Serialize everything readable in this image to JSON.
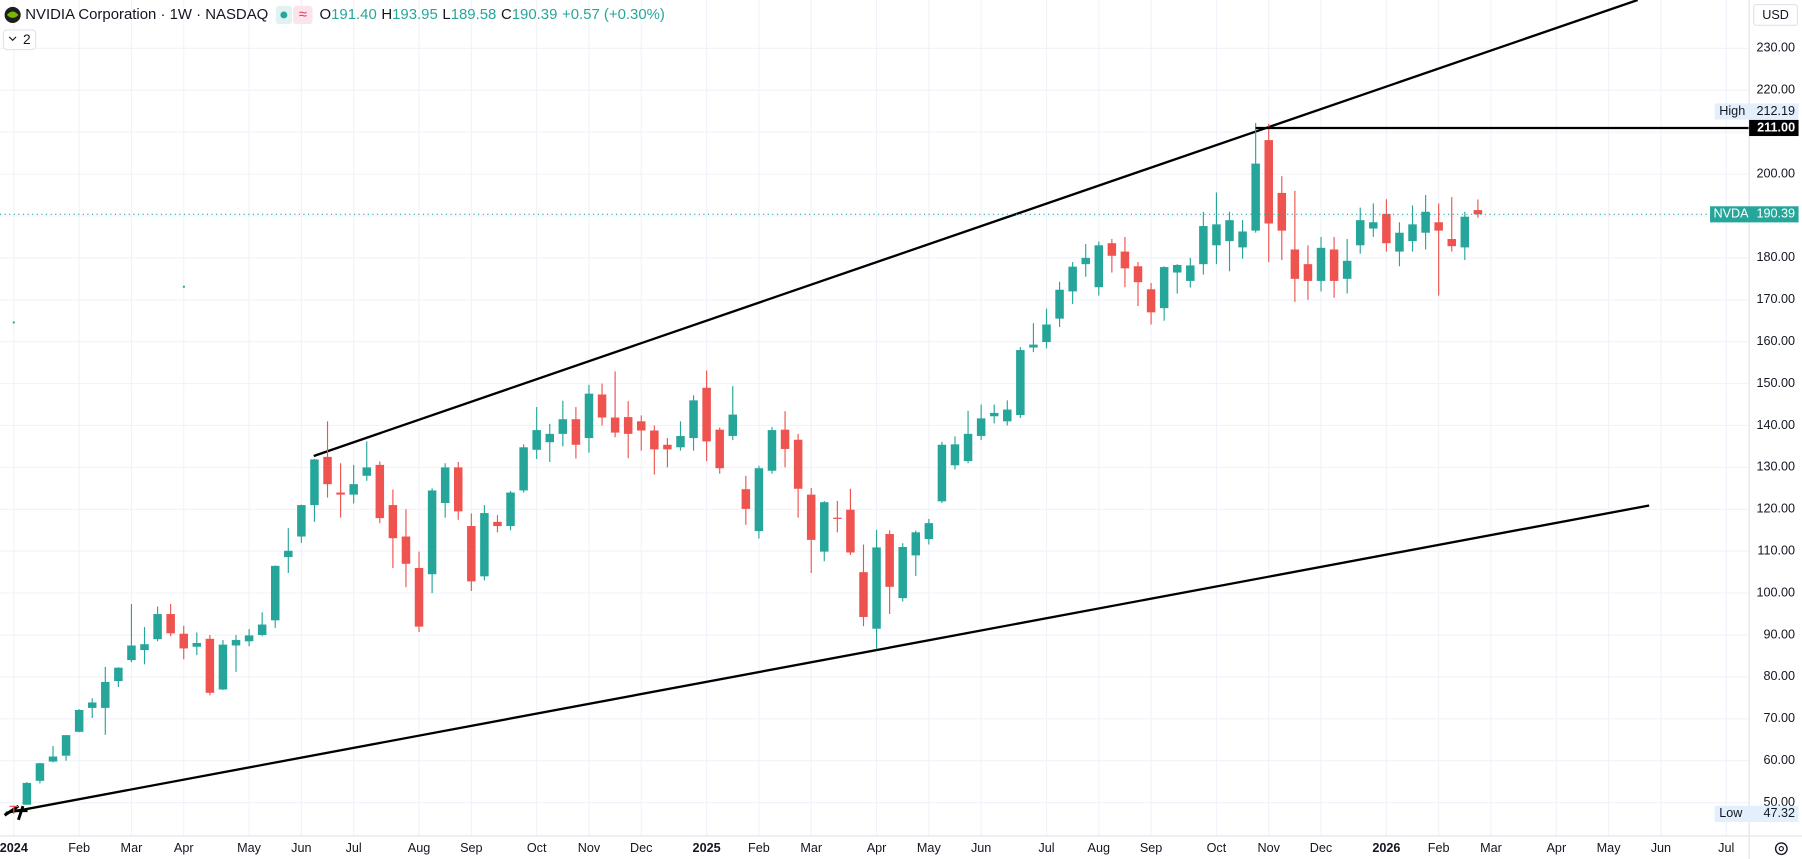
{
  "header": {
    "title": "NVIDIA Corporation · 1W · NASDAQ",
    "badge": "≈",
    "indicator_count": "2",
    "ohlc": [
      {
        "label": "O",
        "value": "191.40"
      },
      {
        "label": "H",
        "value": "193.95"
      },
      {
        "label": "L",
        "value": "189.58"
      },
      {
        "label": "C",
        "value": "190.39"
      }
    ],
    "change": "+0.57 (+0.30%)"
  },
  "chart_data": {
    "type": "candlestick",
    "symbol": "NVDA",
    "currency": "USD",
    "high_label": "High",
    "low_label": "Low",
    "colors": {
      "up": "#26a69a",
      "down": "#ef5350"
    },
    "grid": true,
    "ylim": [
      42.04,
      241.54
    ],
    "xlim": [
      -1.055,
      132.75
    ],
    "yticks": [
      {
        "value": 50,
        "label": "50.00"
      },
      {
        "value": 60,
        "label": "60.00"
      },
      {
        "value": 70,
        "label": "70.00"
      },
      {
        "value": 80,
        "label": "80.00"
      },
      {
        "value": 90,
        "label": "90.00"
      },
      {
        "value": 100,
        "label": "100.00"
      },
      {
        "value": 110,
        "label": "110.00"
      },
      {
        "value": 120,
        "label": "120.00"
      },
      {
        "value": 130,
        "label": "130.00"
      },
      {
        "value": 140,
        "label": "140.00"
      },
      {
        "value": 150,
        "label": "150.00"
      },
      {
        "value": 160,
        "label": "160.00"
      },
      {
        "value": 170,
        "label": "170.00"
      },
      {
        "value": 180,
        "label": "180.00"
      },
      {
        "value": 190,
        "label": "190.00"
      },
      {
        "value": 200,
        "label": "200.00"
      },
      {
        "value": 210,
        "label": "210.00"
      },
      {
        "value": 220,
        "label": "220.00"
      },
      {
        "value": 230,
        "label": "230.00"
      }
    ],
    "xticks": [
      {
        "value": 0,
        "label": "2024"
      },
      {
        "value": 5,
        "label": "Feb"
      },
      {
        "value": 9,
        "label": "Mar"
      },
      {
        "value": 13,
        "label": "Apr"
      },
      {
        "value": 18,
        "label": "May"
      },
      {
        "value": 22,
        "label": "Jun"
      },
      {
        "value": 26,
        "label": "Jul"
      },
      {
        "value": 31,
        "label": "Aug"
      },
      {
        "value": 35,
        "label": "Sep"
      },
      {
        "value": 40,
        "label": "Oct"
      },
      {
        "value": 44,
        "label": "Nov"
      },
      {
        "value": 48,
        "label": "Dec"
      },
      {
        "value": 53,
        "label": "2025"
      },
      {
        "value": 57,
        "label": "Feb"
      },
      {
        "value": 61,
        "label": "Mar"
      },
      {
        "value": 66,
        "label": "Apr"
      },
      {
        "value": 70,
        "label": "May"
      },
      {
        "value": 74,
        "label": "Jun"
      },
      {
        "value": 79,
        "label": "Jul"
      },
      {
        "value": 83,
        "label": "Aug"
      },
      {
        "value": 87,
        "label": "Sep"
      },
      {
        "value": 92,
        "label": "Oct"
      },
      {
        "value": 96,
        "label": "Nov"
      },
      {
        "value": 100,
        "label": "Dec"
      },
      {
        "value": 105,
        "label": "2026"
      },
      {
        "value": 109,
        "label": "Feb"
      },
      {
        "value": 113,
        "label": "Mar"
      },
      {
        "value": 118,
        "label": "Apr"
      },
      {
        "value": 122,
        "label": "May"
      },
      {
        "value": 126,
        "label": "Jun"
      },
      {
        "value": 131,
        "label": "Jul"
      }
    ],
    "hline": {
      "value": 211,
      "label": "211.00"
    },
    "candles": [
      {
        "open": 49.24,
        "high": 49.3,
        "low": 47.32,
        "close": 49.1
      },
      {
        "open": 49.5,
        "high": 54.9,
        "low": 49.5,
        "close": 54.7
      },
      {
        "open": 55.2,
        "high": 59.5,
        "low": 54.6,
        "close": 59.4
      },
      {
        "open": 59.8,
        "high": 63.5,
        "low": 59.6,
        "close": 61.0
      },
      {
        "open": 61.2,
        "high": 66.1,
        "low": 60.0,
        "close": 66.1
      },
      {
        "open": 66.9,
        "high": 72.3,
        "low": 66.8,
        "close": 72.1
      },
      {
        "open": 72.6,
        "high": 74.9,
        "low": 70.2,
        "close": 73.9
      },
      {
        "open": 72.6,
        "high": 82.4,
        "low": 66.2,
        "close": 78.8
      },
      {
        "open": 79.0,
        "high": 82.3,
        "low": 77.6,
        "close": 82.2
      },
      {
        "open": 84.0,
        "high": 97.4,
        "low": 83.5,
        "close": 87.5
      },
      {
        "open": 86.4,
        "high": 91.9,
        "low": 83.0,
        "close": 87.8
      },
      {
        "open": 89.0,
        "high": 96.8,
        "low": 88.5,
        "close": 95.0
      },
      {
        "open": 95.0,
        "high": 97.4,
        "low": 89.7,
        "close": 90.4
      },
      {
        "open": 90.3,
        "high": 92.2,
        "low": 84.2,
        "close": 86.8
      },
      {
        "open": 87.2,
        "high": 90.6,
        "low": 85.2,
        "close": 88.1
      },
      {
        "open": 89.1,
        "high": 90.0,
        "low": 75.6,
        "close": 76.2
      },
      {
        "open": 77.0,
        "high": 88.8,
        "low": 76.9,
        "close": 87.7
      },
      {
        "open": 87.5,
        "high": 90.0,
        "low": 81.2,
        "close": 88.8
      },
      {
        "open": 88.5,
        "high": 91.4,
        "low": 87.3,
        "close": 89.9
      },
      {
        "open": 90.0,
        "high": 95.4,
        "low": 89.7,
        "close": 92.5
      },
      {
        "open": 93.5,
        "high": 106.6,
        "low": 91.7,
        "close": 106.5
      },
      {
        "open": 108.6,
        "high": 115.5,
        "low": 104.8,
        "close": 110.1
      },
      {
        "open": 113.5,
        "high": 121.1,
        "low": 112.0,
        "close": 121.0
      },
      {
        "open": 121.0,
        "high": 132.0,
        "low": 117.0,
        "close": 131.9
      },
      {
        "open": 132.5,
        "high": 141.0,
        "low": 122.8,
        "close": 126.0
      },
      {
        "open": 124.0,
        "high": 131.0,
        "low": 118.0,
        "close": 123.5
      },
      {
        "open": 123.5,
        "high": 130.6,
        "low": 121.4,
        "close": 126.0
      },
      {
        "open": 128.0,
        "high": 136.2,
        "low": 126.8,
        "close": 130.0
      },
      {
        "open": 130.6,
        "high": 131.4,
        "low": 116.7,
        "close": 117.9
      },
      {
        "open": 121.0,
        "high": 124.7,
        "low": 106.0,
        "close": 113.1
      },
      {
        "open": 113.5,
        "high": 120.0,
        "low": 101.4,
        "close": 107.0
      },
      {
        "open": 106.0,
        "high": 109.9,
        "low": 90.7,
        "close": 92.0
      },
      {
        "open": 104.5,
        "high": 125.0,
        "low": 100.0,
        "close": 124.5
      },
      {
        "open": 121.5,
        "high": 131.0,
        "low": 118.0,
        "close": 130.0
      },
      {
        "open": 130.0,
        "high": 131.3,
        "low": 117.5,
        "close": 119.5
      },
      {
        "open": 116.0,
        "high": 119.0,
        "low": 100.5,
        "close": 102.8
      },
      {
        "open": 104.0,
        "high": 121.0,
        "low": 103.0,
        "close": 119.1
      },
      {
        "open": 117.0,
        "high": 118.6,
        "low": 114.5,
        "close": 116.0
      },
      {
        "open": 116.0,
        "high": 124.4,
        "low": 115.0,
        "close": 124.0
      },
      {
        "open": 124.5,
        "high": 135.5,
        "low": 124.0,
        "close": 134.8
      },
      {
        "open": 134.2,
        "high": 144.4,
        "low": 132.0,
        "close": 138.9
      },
      {
        "open": 136.0,
        "high": 140.4,
        "low": 131.3,
        "close": 138.0
      },
      {
        "open": 138.0,
        "high": 145.9,
        "low": 135.0,
        "close": 141.5
      },
      {
        "open": 141.5,
        "high": 144.4,
        "low": 132.1,
        "close": 135.4
      },
      {
        "open": 137.0,
        "high": 149.7,
        "low": 133.5,
        "close": 147.6
      },
      {
        "open": 147.4,
        "high": 150.0,
        "low": 140.0,
        "close": 141.9
      },
      {
        "open": 141.9,
        "high": 152.9,
        "low": 137.2,
        "close": 138.3
      },
      {
        "open": 142.0,
        "high": 145.8,
        "low": 132.2,
        "close": 138.0
      },
      {
        "open": 141.0,
        "high": 142.4,
        "low": 134.0,
        "close": 138.8
      },
      {
        "open": 138.8,
        "high": 140.0,
        "low": 128.3,
        "close": 134.3
      },
      {
        "open": 135.4,
        "high": 137.0,
        "low": 130.0,
        "close": 134.3
      },
      {
        "open": 134.8,
        "high": 141.0,
        "low": 134.0,
        "close": 137.5
      },
      {
        "open": 137.0,
        "high": 147.2,
        "low": 134.0,
        "close": 146.0
      },
      {
        "open": 149.0,
        "high": 153.1,
        "low": 131.5,
        "close": 136.2
      },
      {
        "open": 139.0,
        "high": 139.5,
        "low": 128.5,
        "close": 129.8
      },
      {
        "open": 137.5,
        "high": 149.4,
        "low": 136.5,
        "close": 142.6
      },
      {
        "open": 124.8,
        "high": 128.0,
        "low": 116.3,
        "close": 120.1
      },
      {
        "open": 114.8,
        "high": 130.4,
        "low": 113.0,
        "close": 129.8
      },
      {
        "open": 129.2,
        "high": 139.6,
        "low": 128.5,
        "close": 138.9
      },
      {
        "open": 139.0,
        "high": 143.4,
        "low": 130.0,
        "close": 134.4
      },
      {
        "open": 136.6,
        "high": 138.0,
        "low": 118.0,
        "close": 124.9
      },
      {
        "open": 123.5,
        "high": 125.1,
        "low": 104.8,
        "close": 112.7
      },
      {
        "open": 109.9,
        "high": 122.0,
        "low": 107.6,
        "close": 121.7
      },
      {
        "open": 118.0,
        "high": 122.0,
        "low": 114.5,
        "close": 117.7
      },
      {
        "open": 119.9,
        "high": 124.9,
        "low": 109.1,
        "close": 109.7
      },
      {
        "open": 105.0,
        "high": 111.6,
        "low": 92.1,
        "close": 94.3
      },
      {
        "open": 91.5,
        "high": 115.1,
        "low": 86.6,
        "close": 110.9
      },
      {
        "open": 114.1,
        "high": 115.0,
        "low": 95.0,
        "close": 101.5
      },
      {
        "open": 98.8,
        "high": 111.9,
        "low": 98.0,
        "close": 111.0
      },
      {
        "open": 109.0,
        "high": 114.9,
        "low": 104.1,
        "close": 114.5
      },
      {
        "open": 112.9,
        "high": 117.7,
        "low": 111.6,
        "close": 116.7
      },
      {
        "open": 121.9,
        "high": 136.1,
        "low": 121.5,
        "close": 135.4
      },
      {
        "open": 130.5,
        "high": 137.4,
        "low": 129.5,
        "close": 135.5
      },
      {
        "open": 131.5,
        "high": 143.5,
        "low": 131.0,
        "close": 138.0
      },
      {
        "open": 137.5,
        "high": 145.0,
        "low": 136.5,
        "close": 141.7
      },
      {
        "open": 142.2,
        "high": 145.0,
        "low": 140.5,
        "close": 143.0
      },
      {
        "open": 141.0,
        "high": 146.0,
        "low": 140.0,
        "close": 143.8
      },
      {
        "open": 142.5,
        "high": 158.7,
        "low": 141.8,
        "close": 158.0
      },
      {
        "open": 158.6,
        "high": 164.4,
        "low": 157.5,
        "close": 159.3
      },
      {
        "open": 159.9,
        "high": 167.9,
        "low": 158.4,
        "close": 164.1
      },
      {
        "open": 165.5,
        "high": 174.3,
        "low": 163.5,
        "close": 172.4
      },
      {
        "open": 172.0,
        "high": 179.0,
        "low": 169.0,
        "close": 177.9
      },
      {
        "open": 178.5,
        "high": 183.3,
        "low": 175.5,
        "close": 180.0
      },
      {
        "open": 173.0,
        "high": 183.9,
        "low": 171.0,
        "close": 183.0
      },
      {
        "open": 183.5,
        "high": 184.5,
        "low": 176.5,
        "close": 180.5
      },
      {
        "open": 181.5,
        "high": 185.0,
        "low": 173.0,
        "close": 177.5
      },
      {
        "open": 178.0,
        "high": 179.0,
        "low": 168.5,
        "close": 174.2
      },
      {
        "open": 172.5,
        "high": 174.0,
        "low": 164.1,
        "close": 167.0
      },
      {
        "open": 168.0,
        "high": 178.0,
        "low": 165.0,
        "close": 177.8
      },
      {
        "open": 176.5,
        "high": 178.5,
        "low": 171.5,
        "close": 178.3
      },
      {
        "open": 174.5,
        "high": 180.0,
        "low": 172.9,
        "close": 178.2
      },
      {
        "open": 178.5,
        "high": 191.0,
        "low": 176.0,
        "close": 187.6
      },
      {
        "open": 183.0,
        "high": 195.6,
        "low": 178.5,
        "close": 188.0
      },
      {
        "open": 184.0,
        "high": 191.0,
        "low": 176.8,
        "close": 189.0
      },
      {
        "open": 182.5,
        "high": 189.0,
        "low": 179.8,
        "close": 186.3
      },
      {
        "open": 186.5,
        "high": 212.19,
        "low": 186.0,
        "close": 202.5
      },
      {
        "open": 208.1,
        "high": 212.0,
        "low": 179.0,
        "close": 188.2
      },
      {
        "open": 195.5,
        "high": 199.5,
        "low": 179.5,
        "close": 186.5
      },
      {
        "open": 182.0,
        "high": 196.0,
        "low": 169.5,
        "close": 175.0
      },
      {
        "open": 178.5,
        "high": 183.0,
        "low": 170.0,
        "close": 174.5
      },
      {
        "open": 174.5,
        "high": 185.0,
        "low": 172.0,
        "close": 182.4
      },
      {
        "open": 182.0,
        "high": 185.0,
        "low": 170.5,
        "close": 174.5
      },
      {
        "open": 175.0,
        "high": 184.5,
        "low": 171.5,
        "close": 179.3
      },
      {
        "open": 183.0,
        "high": 192.0,
        "low": 181.0,
        "close": 189.0
      },
      {
        "open": 187.0,
        "high": 193.0,
        "low": 185.0,
        "close": 188.5
      },
      {
        "open": 190.5,
        "high": 194.0,
        "low": 181.5,
        "close": 183.5
      },
      {
        "open": 181.5,
        "high": 188.5,
        "low": 178.0,
        "close": 186.0
      },
      {
        "open": 184.0,
        "high": 192.5,
        "low": 181.5,
        "close": 188.0
      },
      {
        "open": 186.0,
        "high": 195.0,
        "low": 182.0,
        "close": 191.0
      },
      {
        "open": 188.5,
        "high": 193.0,
        "low": 171.0,
        "close": 186.5
      },
      {
        "open": 184.5,
        "high": 194.5,
        "low": 181.5,
        "close": 182.8
      },
      {
        "open": 182.5,
        "high": 191.0,
        "low": 179.5,
        "close": 189.82
      },
      {
        "open": 191.4,
        "high": 193.95,
        "low": 189.58,
        "close": 190.39
      }
    ]
  }
}
